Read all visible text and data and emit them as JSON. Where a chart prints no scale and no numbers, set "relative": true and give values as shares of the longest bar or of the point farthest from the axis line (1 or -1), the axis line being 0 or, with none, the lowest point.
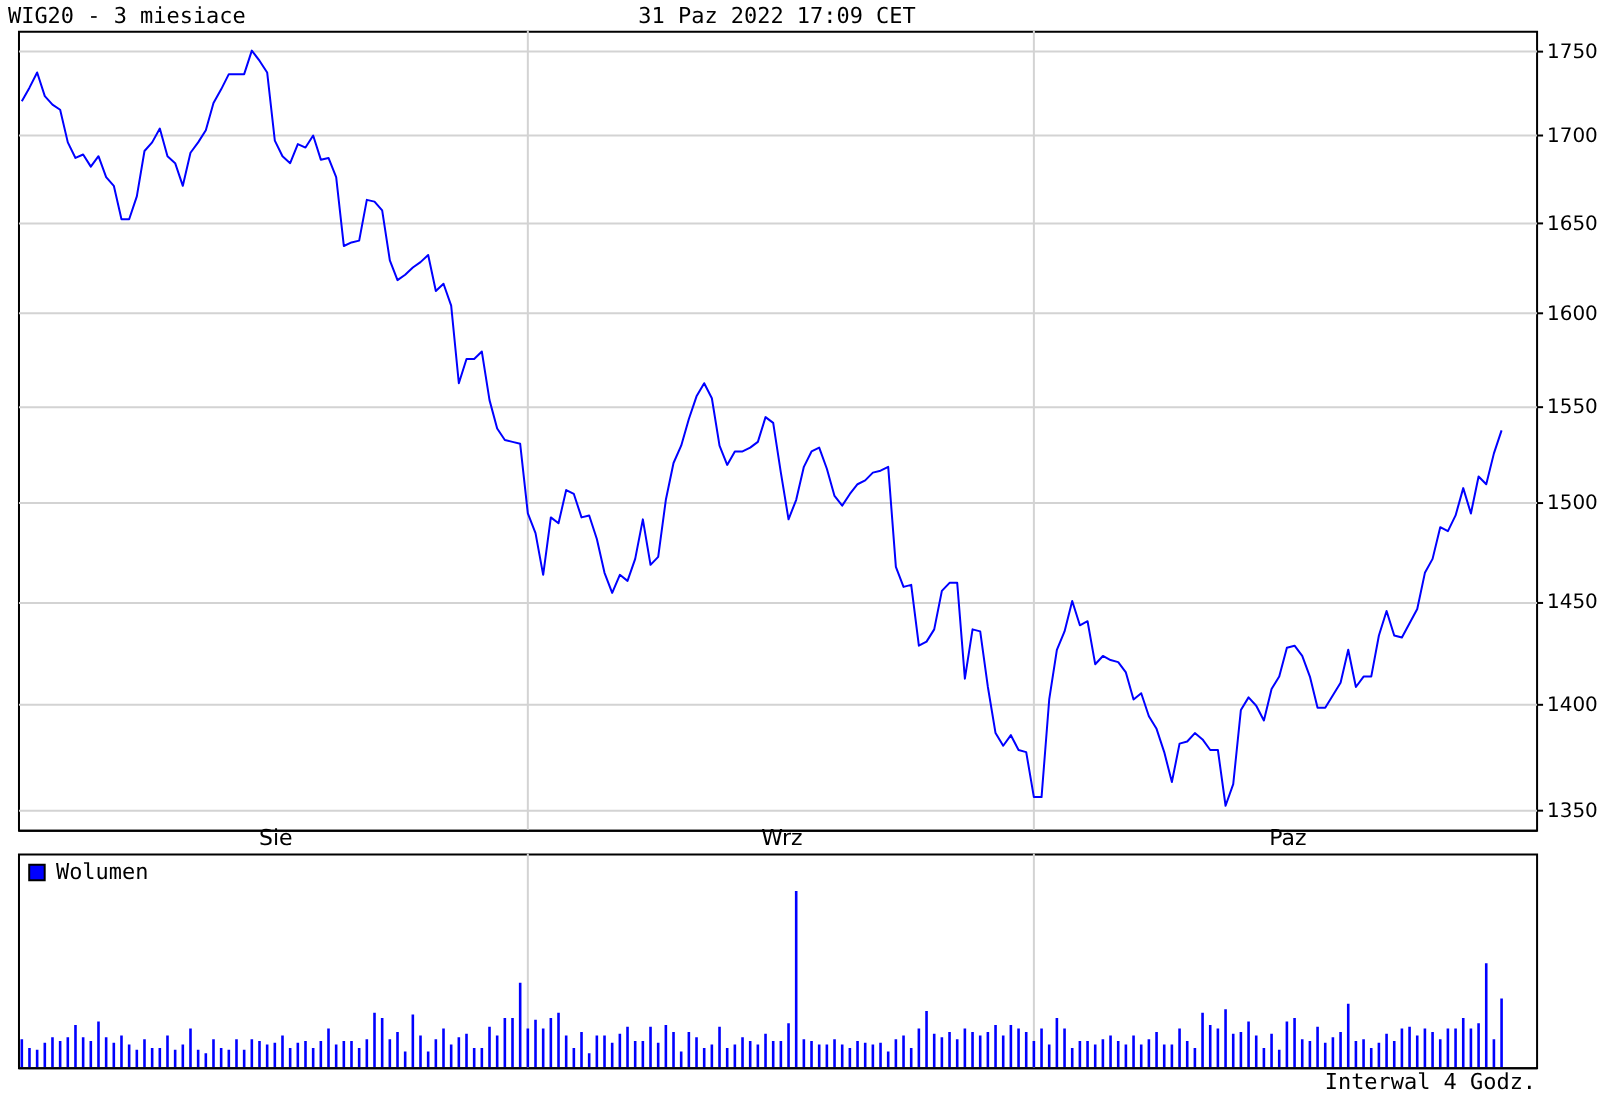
{
  "chart_data": [
    {
      "type": "line",
      "title": "WIG20 - 3 miesiace",
      "annotations": [
        "31 Paz 2022 17:09 CET"
      ],
      "categories": [
        null,
        null,
        null,
        null,
        null,
        null,
        null,
        null,
        null,
        null,
        null,
        null,
        null,
        null,
        null,
        null,
        null,
        null,
        null,
        null,
        null,
        null,
        null,
        null,
        null,
        null,
        null,
        null,
        null,
        null,
        null,
        null,
        null,
        "Sie",
        null,
        null,
        null,
        null,
        null,
        null,
        null,
        null,
        null,
        null,
        null,
        null,
        null,
        null,
        null,
        null,
        null,
        null,
        null,
        null,
        null,
        null,
        null,
        null,
        null,
        null,
        null,
        null,
        null,
        null,
        null,
        null,
        null,
        null,
        null,
        null,
        null,
        null,
        null,
        null,
        null,
        null,
        null,
        null,
        null,
        null,
        null,
        null,
        null,
        null,
        null,
        null,
        null,
        null,
        null,
        null,
        null,
        null,
        null,
        null,
        null,
        null,
        null,
        null,
        null,
        "Wrz",
        null,
        null,
        null,
        null,
        null,
        null,
        null,
        null,
        null,
        null,
        null,
        null,
        null,
        null,
        null,
        null,
        null,
        null,
        null,
        null,
        null,
        null,
        null,
        null,
        null,
        null,
        null,
        null,
        null,
        null,
        null,
        null,
        null,
        null,
        null,
        null,
        null,
        null,
        null,
        null,
        null,
        null,
        null,
        null,
        null,
        null,
        null,
        null,
        null,
        null,
        null,
        null,
        null,
        null,
        null,
        null,
        null,
        null,
        null,
        null,
        null,
        null,
        null,
        null,
        null,
        "Paz",
        null,
        null,
        null,
        null,
        null,
        null,
        null,
        null,
        null,
        null,
        null,
        null,
        null,
        null,
        null,
        null,
        null,
        null,
        null,
        null,
        null,
        null,
        null,
        null,
        null,
        null,
        null,
        null,
        null,
        null,
        null,
        null
      ],
      "color": "#0000ff",
      "values": [
        1720,
        1728,
        1737,
        1723,
        1718,
        1715,
        1696,
        1687,
        1689,
        1682,
        1688,
        1676,
        1671,
        1652,
        1652,
        1665,
        1691,
        1696,
        1704,
        1688,
        1684,
        1671,
        1690,
        1696,
        1703,
        1719,
        1727,
        1736,
        1736,
        1736,
        1750,
        1744,
        1737,
        1697,
        1688,
        1684,
        1695,
        1693,
        1700,
        1686,
        1687,
        1676,
        1637,
        1639,
        1640,
        1663,
        1662,
        1657,
        1629,
        1618,
        1621,
        1625,
        1628,
        1632,
        1612,
        1616,
        1604,
        1562,
        1575,
        1575,
        1579,
        1553,
        1538,
        1532,
        1531,
        1530,
        1494,
        1484,
        1463,
        1492,
        1489,
        1506,
        1504,
        1492,
        1493,
        1481,
        1464,
        1454,
        1463,
        1460,
        1471,
        1491,
        1468,
        1472,
        1501,
        1520,
        1529,
        1543,
        1555,
        1562,
        1554,
        1529,
        1519,
        1526,
        1526,
        1528,
        1531,
        1544,
        1541,
        1515,
        1491,
        1501,
        1518,
        1526,
        1528,
        1517,
        1503,
        1498,
        1504,
        1509,
        1511,
        1515,
        1516,
        1518,
        1467,
        1457,
        1458,
        1428,
        1430,
        1436,
        1455,
        1459,
        1459,
        1412,
        1436,
        1435,
        1408,
        1386,
        1380,
        1385,
        1378,
        1377,
        1356,
        1356,
        1402,
        1426,
        1435,
        1450,
        1438,
        1440,
        1419,
        1423,
        1421,
        1420,
        1415,
        1402,
        1405,
        1394,
        1388,
        1377,
        1363,
        1381,
        1382,
        1386,
        1383,
        1378,
        1378,
        1352,
        1362,
        1397,
        1403,
        1399,
        1392,
        1407,
        1413,
        1427,
        1428,
        1423,
        1413,
        1398,
        1398,
        1404,
        1410,
        1426,
        1408,
        1413,
        1413,
        1433,
        1445,
        1433,
        1432,
        1439,
        1446,
        1464,
        1471,
        1487,
        1485,
        1493,
        1507,
        1494,
        1513,
        1509,
        1525,
        1537,
        null,
        null,
        null,
        null
      ],
      "ylim": [
        1341,
        1762
      ],
      "yticks": [
        1350,
        1400,
        1450,
        1500,
        1550,
        1600,
        1650,
        1700,
        1750
      ],
      "log": true,
      "grid": true
    },
    {
      "type": "bar",
      "relative": true,
      "legend": "top left",
      "tick_labels": false,
      "grid": "x",
      "annotations": [
        "Interwal 4 Godz."
      ],
      "categories": [
        null,
        null,
        null,
        null,
        null,
        null,
        null,
        null,
        null,
        null,
        null,
        null,
        null,
        null,
        null,
        null,
        null,
        null,
        null,
        null,
        null,
        null,
        null,
        null,
        null,
        null,
        null,
        null,
        null,
        null,
        null,
        null,
        null,
        null,
        null,
        null,
        null,
        null,
        null,
        null,
        null,
        null,
        null,
        null,
        null,
        null,
        null,
        null,
        null,
        null,
        null,
        null,
        null,
        null,
        null,
        null,
        null,
        null,
        null,
        null,
        null,
        null,
        null,
        null,
        null,
        null,
        null,
        null,
        null,
        null,
        null,
        null,
        null,
        null,
        null,
        null,
        null,
        null,
        null,
        null,
        null,
        null,
        null,
        null,
        null,
        null,
        null,
        null,
        null,
        null,
        null,
        null,
        null,
        null,
        null,
        null,
        null,
        null,
        null,
        null,
        null,
        null,
        null,
        null,
        null,
        null,
        null,
        null,
        null,
        null,
        null,
        null,
        null,
        null,
        null,
        null,
        null,
        null,
        null,
        null,
        null,
        null,
        null,
        null,
        null,
        null,
        null,
        null,
        null,
        null,
        null,
        null,
        null,
        null,
        null,
        null,
        null,
        null,
        null,
        null,
        null,
        null,
        null,
        null,
        null,
        null,
        null,
        null,
        null,
        null,
        null,
        null,
        null,
        null,
        null,
        null,
        null,
        null,
        null,
        null,
        null,
        null,
        null,
        null,
        null,
        null,
        null,
        null,
        null,
        null,
        null,
        null,
        null,
        null,
        null,
        null,
        null,
        null,
        null,
        null,
        null,
        null,
        null,
        null,
        null,
        null,
        null,
        null,
        null,
        null,
        null,
        null,
        null,
        null,
        null,
        null,
        null,
        null
      ],
      "series": [
        {
          "name": "Wolumen",
          "color": "#0000ff",
          "values": [
            0.16,
            0.11,
            0.1,
            0.14,
            0.17,
            0.15,
            0.17,
            0.24,
            0.17,
            0.15,
            0.26,
            0.17,
            0.14,
            0.18,
            0.13,
            0.1,
            0.16,
            0.11,
            0.11,
            0.18,
            0.1,
            0.13,
            0.22,
            0.1,
            0.08,
            0.16,
            0.11,
            0.1,
            0.16,
            0.1,
            0.16,
            0.15,
            0.13,
            0.14,
            0.18,
            0.11,
            0.14,
            0.15,
            0.11,
            0.15,
            0.22,
            0.13,
            0.15,
            0.15,
            0.11,
            0.16,
            0.31,
            0.28,
            0.16,
            0.2,
            0.09,
            0.3,
            0.18,
            0.09,
            0.16,
            0.22,
            0.13,
            0.17,
            0.19,
            0.11,
            0.11,
            0.23,
            0.18,
            0.28,
            0.28,
            0.48,
            0.22,
            0.27,
            0.22,
            0.28,
            0.31,
            0.18,
            0.11,
            0.2,
            0.08,
            0.18,
            0.18,
            0.14,
            0.19,
            0.23,
            0.15,
            0.15,
            0.23,
            0.14,
            0.24,
            0.2,
            0.09,
            0.2,
            0.17,
            0.11,
            0.13,
            0.23,
            0.11,
            0.13,
            0.17,
            0.15,
            0.13,
            0.19,
            0.15,
            0.15,
            0.25,
            1.0,
            0.16,
            0.15,
            0.13,
            0.13,
            0.16,
            0.13,
            0.11,
            0.15,
            0.14,
            0.13,
            0.14,
            0.09,
            0.16,
            0.18,
            0.11,
            0.22,
            0.32,
            0.19,
            0.17,
            0.2,
            0.16,
            0.22,
            0.2,
            0.18,
            0.2,
            0.24,
            0.18,
            0.24,
            0.22,
            0.2,
            0.15,
            0.22,
            0.13,
            0.28,
            0.22,
            0.11,
            0.15,
            0.15,
            0.13,
            0.16,
            0.18,
            0.15,
            0.13,
            0.18,
            0.13,
            0.16,
            0.2,
            0.13,
            0.13,
            0.22,
            0.15,
            0.11,
            0.31,
            0.24,
            0.22,
            0.33,
            0.19,
            0.2,
            0.26,
            0.18,
            0.11,
            0.19,
            0.1,
            0.26,
            0.28,
            0.16,
            0.15,
            0.23,
            0.14,
            0.17,
            0.2,
            0.36,
            0.15,
            0.16,
            0.11,
            0.14,
            0.19,
            0.15,
            0.22,
            0.23,
            0.18,
            0.22,
            0.2,
            0.16,
            0.22,
            0.22,
            0.28,
            0.22,
            0.25,
            0.59,
            0.16,
            0.39,
            null,
            null,
            null,
            null
          ]
        }
      ]
    }
  ]
}
